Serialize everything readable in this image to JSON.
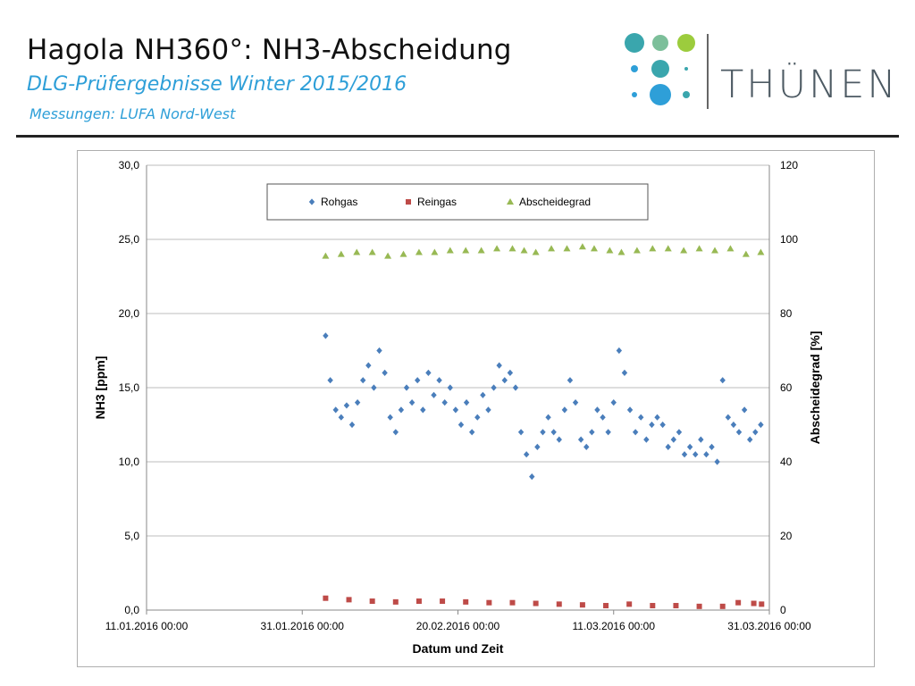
{
  "header": {
    "title": "Hagola NH360°: NH3-Abscheidung",
    "subtitle": "DLG-Prüfergebnisse Winter 2015/2016",
    "source": "Messungen: LUFA Nord-West"
  },
  "logo": {
    "text": "THÜNEN",
    "dot_colors": [
      "#3aa6ad",
      "#7cbf9a",
      "#9ccc3d",
      "#3aa6ad",
      "#2e9fd8"
    ]
  },
  "chart_data": {
    "type": "scatter",
    "title": "",
    "xlabel": "Datum und Zeit",
    "ylabel": "NH3 [ppm]",
    "y2label": "Abscheidegrad [%]",
    "x_ticks": [
      "11.01.2016 00:00",
      "31.01.2016 00:00",
      "20.02.2016 00:00",
      "11.03.2016 00:00",
      "31.03.2016 00:00"
    ],
    "xlim_days_from_2016_01_11": [
      0,
      80
    ],
    "ylim": [
      0,
      30
    ],
    "y_ticks": [
      "0,0",
      "5,0",
      "10,0",
      "15,0",
      "20,0",
      "25,0",
      "30,0"
    ],
    "y2lim": [
      0,
      120
    ],
    "y2_ticks": [
      "0",
      "20",
      "40",
      "60",
      "80",
      "100",
      "120"
    ],
    "legend_position": "top",
    "grid": true,
    "series": [
      {
        "name": "Rohgas",
        "axis": "left",
        "marker": "diamond",
        "color": "#4a7ebb",
        "x": [
          23.0,
          23.6,
          24.3,
          25.0,
          25.7,
          26.4,
          27.1,
          27.8,
          28.5,
          29.2,
          29.9,
          30.6,
          31.3,
          32.0,
          32.7,
          33.4,
          34.1,
          34.8,
          35.5,
          36.2,
          36.9,
          37.6,
          38.3,
          39.0,
          39.7,
          40.4,
          41.1,
          41.8,
          42.5,
          43.2,
          43.9,
          44.6,
          45.3,
          46.0,
          46.7,
          47.4,
          48.1,
          48.8,
          49.5,
          50.2,
          50.9,
          51.6,
          52.3,
          53.0,
          53.7,
          54.4,
          55.1,
          55.8,
          56.5,
          57.2,
          57.9,
          58.6,
          59.3,
          60.0,
          60.7,
          61.4,
          62.1,
          62.8,
          63.5,
          64.2,
          64.9,
          65.6,
          66.3,
          67.0,
          67.7,
          68.4,
          69.1,
          69.8,
          70.5,
          71.2,
          71.9,
          72.6,
          73.3,
          74.0,
          74.7,
          75.4,
          76.1,
          76.8,
          77.5,
          78.2,
          78.9
        ],
        "y": [
          18.5,
          15.5,
          13.5,
          13.0,
          13.8,
          12.5,
          14.0,
          15.5,
          16.5,
          15.0,
          17.5,
          16.0,
          13.0,
          12.0,
          13.5,
          15.0,
          14.0,
          15.5,
          13.5,
          16.0,
          14.5,
          15.5,
          14.0,
          15.0,
          13.5,
          12.5,
          14.0,
          12.0,
          13.0,
          14.5,
          13.5,
          15.0,
          16.5,
          15.5,
          16.0,
          15.0,
          12.0,
          10.5,
          9.0,
          11.0,
          12.0,
          13.0,
          12.0,
          11.5,
          13.5,
          15.5,
          14.0,
          11.5,
          11.0,
          12.0,
          13.5,
          13.0,
          12.0,
          14.0,
          17.5,
          16.0,
          13.5,
          12.0,
          13.0,
          11.5,
          12.5,
          13.0,
          12.5,
          11.0,
          11.5,
          12.0,
          10.5,
          11.0,
          10.5,
          11.5,
          10.5,
          11.0,
          10.0,
          15.5,
          13.0,
          12.5,
          12.0,
          13.5,
          11.5,
          12.0,
          12.5
        ]
      },
      {
        "name": "Reingas",
        "axis": "left",
        "marker": "square",
        "color": "#be4b48",
        "x": [
          23.0,
          26.0,
          29.0,
          32.0,
          35.0,
          38.0,
          41.0,
          44.0,
          47.0,
          50.0,
          53.0,
          56.0,
          59.0,
          62.0,
          65.0,
          68.0,
          71.0,
          74.0,
          76.0,
          78.0,
          79.0
        ],
        "y": [
          0.8,
          0.7,
          0.6,
          0.55,
          0.6,
          0.6,
          0.55,
          0.5,
          0.5,
          0.45,
          0.4,
          0.35,
          0.3,
          0.4,
          0.3,
          0.3,
          0.25,
          0.25,
          0.5,
          0.45,
          0.4
        ]
      },
      {
        "name": "Abscheidegrad",
        "axis": "right",
        "marker": "triangle",
        "color": "#98b954",
        "x": [
          23.0,
          25.0,
          27.0,
          29.0,
          31.0,
          33.0,
          35.0,
          37.0,
          39.0,
          41.0,
          43.0,
          45.0,
          47.0,
          48.5,
          50.0,
          52.0,
          54.0,
          56.0,
          57.5,
          59.5,
          61.0,
          63.0,
          65.0,
          67.0,
          69.0,
          71.0,
          73.0,
          75.0,
          77.0,
          78.9
        ],
        "y": [
          95.5,
          96.0,
          96.5,
          96.5,
          95.5,
          96.0,
          96.5,
          96.5,
          97.0,
          97.0,
          97.0,
          97.5,
          97.5,
          97.0,
          96.5,
          97.5,
          97.5,
          98.0,
          97.5,
          97.0,
          96.5,
          97.0,
          97.5,
          97.5,
          97.0,
          97.5,
          97.0,
          97.5,
          96.0,
          96.5
        ]
      }
    ]
  }
}
